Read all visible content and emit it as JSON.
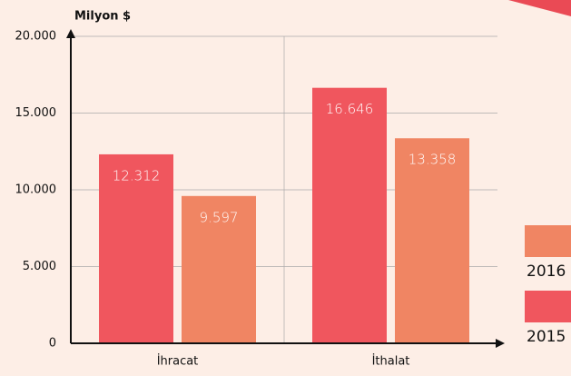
{
  "chart_data": {
    "type": "bar",
    "y_axis_label": "Milyon $",
    "categories": [
      "İhracat",
      "İthalat"
    ],
    "series": [
      {
        "name": "2015",
        "color": "#f0565e",
        "values": [
          12312,
          16646
        ],
        "value_labels": [
          "12.312",
          "16.646"
        ]
      },
      {
        "name": "2016",
        "color": "#f08563",
        "values": [
          9597,
          13358
        ],
        "value_labels": [
          "9.597",
          "13.358"
        ]
      }
    ],
    "ylim": [
      0,
      20000
    ],
    "yticks": [
      0,
      {
        "value": 5000,
        "label": "5.000"
      },
      {
        "value": 10000,
        "label": "10.000"
      },
      {
        "value": 15000,
        "label": "15.000"
      },
      {
        "value": 20000,
        "label": "20.000"
      }
    ],
    "grid": true,
    "legend": "right"
  }
}
